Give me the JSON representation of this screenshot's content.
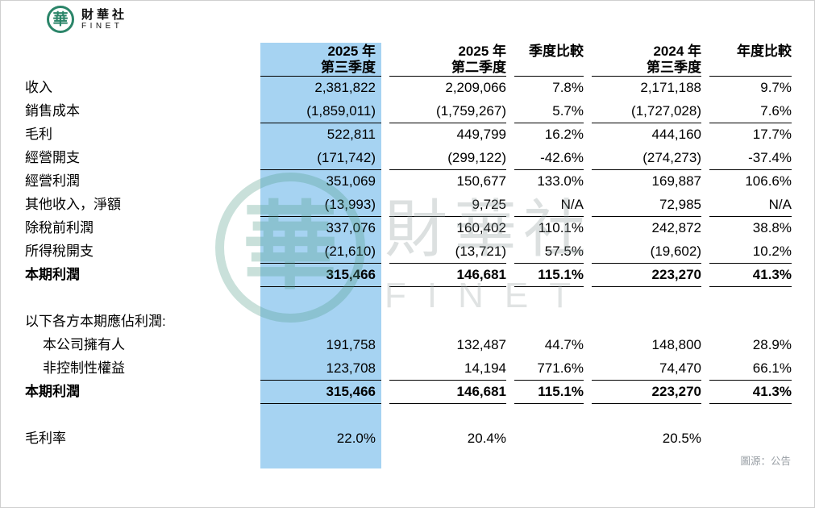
{
  "brand": {
    "logo_char": "華",
    "name_zh": "財華社",
    "name_en": "FINET"
  },
  "watermark": {
    "logo_char": "華",
    "name_zh": "財華社",
    "name_en": "FINET"
  },
  "source_note": "圖源：公告",
  "colors": {
    "highlight_blue": "#a6d3f2",
    "brand_green": "#2b8569",
    "source_gray": "#9aa0a6"
  },
  "chart_data": {
    "type": "table",
    "title": "",
    "columns": [
      "",
      "2025年第三季度",
      "2025年第二季度",
      "季度比較",
      "2024年第三季度",
      "年度比較"
    ],
    "header": {
      "c1_line1": "2025 年",
      "c1_line2": "第三季度",
      "c2_line1": "2025 年",
      "c2_line2": "第二季度",
      "c3": "季度比較",
      "c4_line1": "2024 年",
      "c4_line2": "第三季度",
      "c5": "年度比較"
    },
    "highlighted_column": "2025年第三季度",
    "rows": [
      {
        "label": "收入",
        "cells": [
          "2,381,822",
          "2,209,066",
          "7.8%",
          "2,171,188",
          "9.7%"
        ]
      },
      {
        "label": "銷售成本",
        "cells": [
          "(1,859,011)",
          "(1,759,267)",
          "5.7%",
          "(1,727,028)",
          "7.6%"
        ]
      },
      {
        "label": "毛利",
        "cells": [
          "522,811",
          "449,799",
          "16.2%",
          "444,160",
          "17.7%"
        ]
      },
      {
        "label": "經營開支",
        "cells": [
          "(171,742)",
          "(299,122)",
          "-42.6%",
          "(274,273)",
          "-37.4%"
        ]
      },
      {
        "label": "經營利潤",
        "cells": [
          "351,069",
          "150,677",
          "133.0%",
          "169,887",
          "106.6%"
        ]
      },
      {
        "label": "其他收入，淨額",
        "cells": [
          "(13,993)",
          "9,725",
          "N/A",
          "72,985",
          "N/A"
        ]
      },
      {
        "label": "除稅前利潤",
        "cells": [
          "337,076",
          "160,402",
          "110.1%",
          "242,872",
          "38.8%"
        ]
      },
      {
        "label": "所得稅開支",
        "cells": [
          "(21,610)",
          "(13,721)",
          "57.5%",
          "(19,602)",
          "10.2%"
        ]
      },
      {
        "label": "本期利潤",
        "cells": [
          "315,466",
          "146,681",
          "115.1%",
          "223,270",
          "41.3%"
        ]
      },
      {
        "label": "",
        "cells": [
          "",
          "",
          "",
          "",
          ""
        ]
      },
      {
        "label": "以下各方本期應佔利潤:",
        "cells": [
          "",
          "",
          "",
          "",
          ""
        ]
      },
      {
        "label": "本公司擁有人",
        "cells": [
          "191,758",
          "132,487",
          "44.7%",
          "148,800",
          "28.9%"
        ]
      },
      {
        "label": "非控制性權益",
        "cells": [
          "123,708",
          "14,194",
          "771.6%",
          "74,470",
          "66.1%"
        ]
      },
      {
        "label": "本期利潤",
        "cells": [
          "315,466",
          "146,681",
          "115.1%",
          "223,270",
          "41.3%"
        ]
      },
      {
        "label": "",
        "cells": [
          "",
          "",
          "",
          "",
          ""
        ]
      },
      {
        "label": "毛利率",
        "cells": [
          "22.0%",
          "20.4%",
          "",
          "20.5%",
          ""
        ]
      }
    ]
  }
}
